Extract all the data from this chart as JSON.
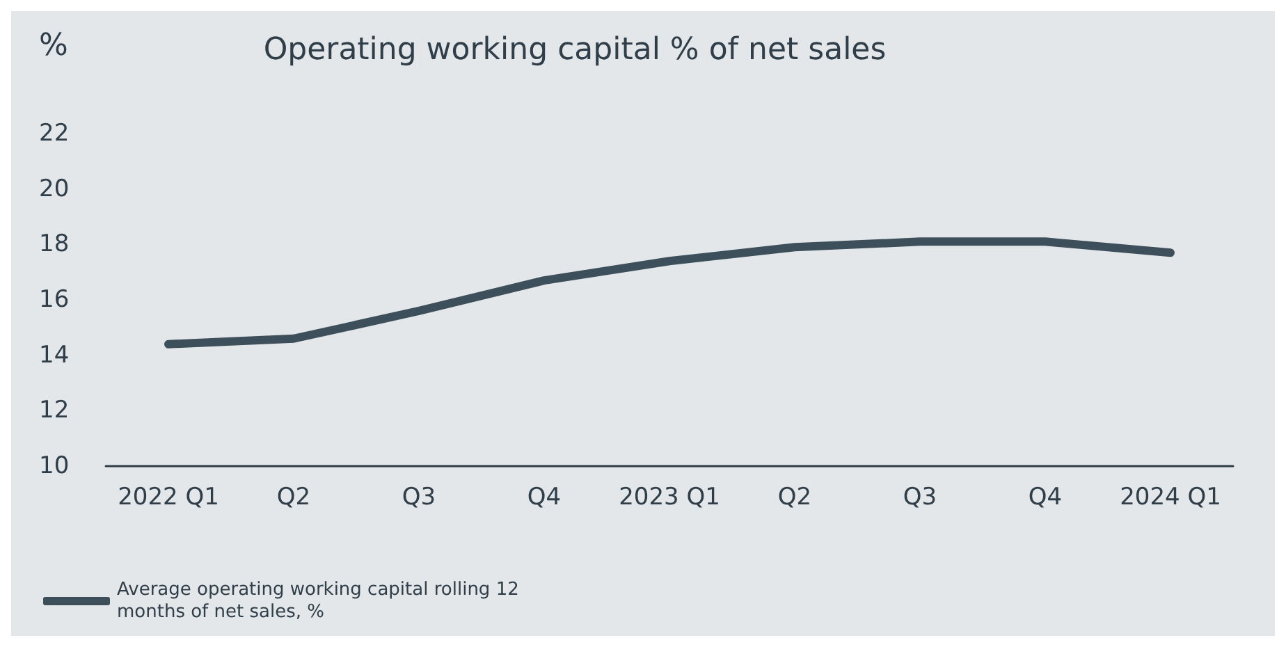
{
  "chart_data": {
    "type": "line",
    "title": "Operating working capital % of net sales",
    "ylabel": "%",
    "categories": [
      "2022 Q1",
      "Q2",
      "Q3",
      "Q4",
      "2023 Q1",
      "Q2",
      "Q3",
      "Q4",
      "2024 Q1"
    ],
    "series": [
      {
        "name": "Average operating working capital rolling 12 months of net sales, %",
        "color": "#3d4f5a",
        "values": [
          14.4,
          14.6,
          15.6,
          16.7,
          17.4,
          17.9,
          18.1,
          18.1,
          17.7
        ]
      }
    ],
    "ylim": [
      10,
      22
    ],
    "yticks": [
      10,
      12,
      14,
      16,
      18,
      20,
      22
    ],
    "grid": false,
    "legend": "bottom left",
    "marker": "none",
    "line_style": "solid"
  }
}
